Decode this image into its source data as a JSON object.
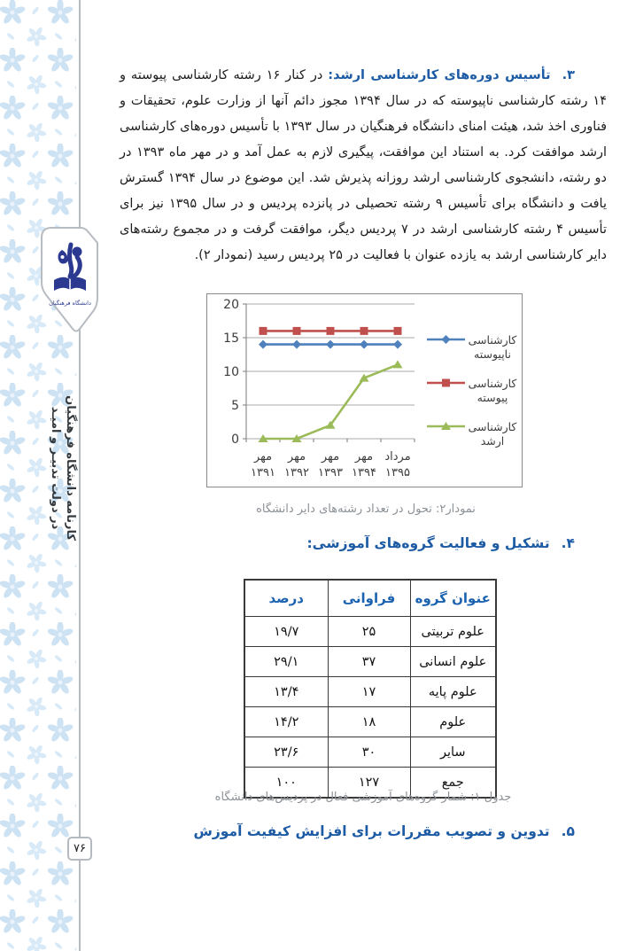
{
  "page": {
    "number": "۷۶",
    "sidebar": {
      "vertical_title_line1": "کارنامه دانشگاه فرهنگیان",
      "vertical_title_line2": "در دولت تدبیـر و امیـد",
      "logo_caption": "دانشگاه فرهنگیان"
    }
  },
  "sections": {
    "item3": {
      "number": "۳.",
      "lead": "تأسیس دوره‌های کارشناسی ارشد:",
      "body": "در کنار ۱۶ رشته کارشناسی پیوسته و ۱۴ رشته کارشناسی ناپیوسته که در سال ۱۳۹۴ مجوز دائم آنها از وزارت علوم، تحقیقات و فناوری اخذ شد، هیئت امنای دانشگاه فرهنگیان در سال ۱۳۹۳ با تأسیس دوره‌های کارشناسی ارشد موافقت کرد. به استناد این موافقت، پیگیری لازم به عمل آمد و در مهر ماه ۱۳۹۳ در دو رشته، دانشجوی کارشناسی ارشد روزانه پذیرش شد. این موضوع در سال ۱۳۹۴ گسترش یافت و دانشگاه برای تأسیس ۹ رشته تحصیلی در پانزده پردیس و در سال ۱۳۹۵ نیز برای تأسیس ۴ رشته کارشناسی ارشد در ۷ پردیس دیگر، موافقت گرفت و در مجموع رشته‌های دایر کارشناسی ارشد به یازده عنوان با فعالیت در ۲۵ پردیس رسید (نمودار ۲)."
    },
    "chart_caption": "نمودار۲: تحول در تعداد رشته‌های دایر دانشگاه",
    "item4": {
      "number": "۴.",
      "title": "تشکیل و فعالیت گروه‌های آموزشی:"
    },
    "table_caption": "جدول ۱: شمار گروه‌های آموزشی فعال در پردیس‌های دانشگاه",
    "item5": {
      "number": "۵.",
      "title": "تدوین و تصویب مقررات برای افزایش کیفیت آموزش"
    }
  },
  "chart_data": {
    "type": "line",
    "categories": [
      [
        "مهر",
        "۱۳۹۱"
      ],
      [
        "مهر",
        "۱۳۹۲"
      ],
      [
        "مهر",
        "۱۳۹۳"
      ],
      [
        "مهر",
        "۱۳۹۴"
      ],
      [
        "مرداد",
        "۱۳۹۵"
      ]
    ],
    "series": [
      {
        "name": [
          "کارشناسی",
          "ناپیوسته"
        ],
        "values": [
          14,
          14,
          14,
          14,
          14
        ],
        "color": "#4F81BD",
        "marker": "diamond"
      },
      {
        "name": [
          "کارشناسی",
          "پیوسته"
        ],
        "values": [
          16,
          16,
          16,
          16,
          16
        ],
        "color": "#C0504D",
        "marker": "square"
      },
      {
        "name": [
          "کارشناسی",
          "ارشد"
        ],
        "values": [
          0,
          0,
          2,
          9,
          11
        ],
        "color": "#9BBB59",
        "marker": "triangle"
      }
    ],
    "title": "",
    "xlabel": "",
    "ylabel": "",
    "ylim": [
      0,
      20
    ],
    "ytick_step": 5,
    "yticks": [
      "0",
      "5",
      "10",
      "15",
      "20"
    ],
    "grid": true,
    "legend_position": "right"
  },
  "table": {
    "headers": [
      "عنوان گروه",
      "فراوانی",
      "درصد"
    ],
    "rows": [
      [
        "علوم تربیتی",
        "۲۵",
        "۱۹/۷"
      ],
      [
        "علوم انسانی",
        "۳۷",
        "۲۹/۱"
      ],
      [
        "علوم پایه",
        "۱۷",
        "۱۳/۴"
      ],
      [
        "علوم",
        "۱۸",
        "۱۴/۲"
      ],
      [
        "سایر",
        "۳۰",
        "۲۳/۶"
      ],
      [
        "جمع",
        "۱۲۷",
        "۱۰۰"
      ]
    ]
  },
  "colors": {
    "heading_blue": "#1d5ba4",
    "caption_gray": "#8b9197",
    "pattern_blue": "#cde2f3",
    "logo_blue": "#2B3990"
  }
}
